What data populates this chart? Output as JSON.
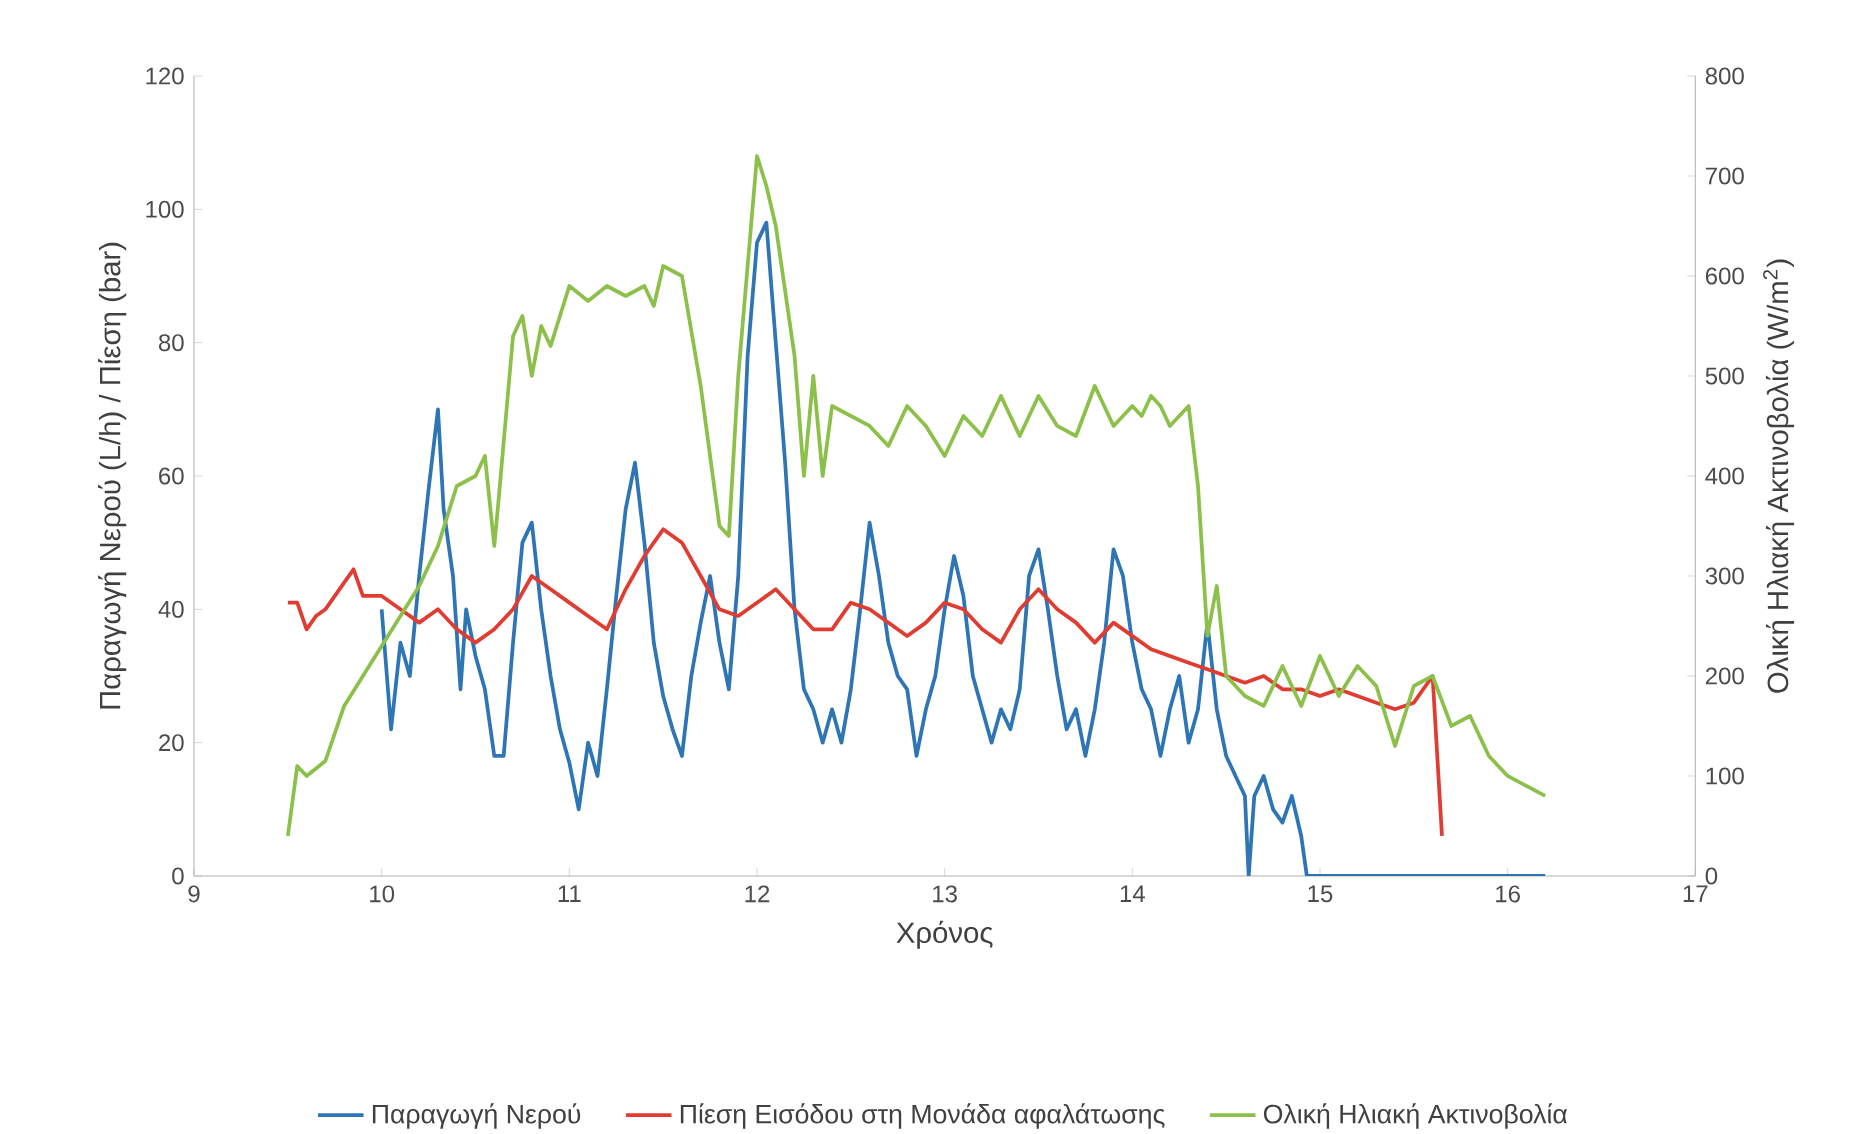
{
  "chart_data": {
    "type": "line",
    "xlabel": "Χρόνος",
    "ylabel": "Παραγωγή Νερού (L/h) / Πίεση (bar)",
    "y2label": "Ολική Ηλιακή Ακτινοβολία (W/m$^{2}$)",
    "xlim": [
      9,
      17
    ],
    "xticks": [
      9,
      10,
      11,
      12,
      13,
      14,
      15,
      16,
      17
    ],
    "ylim": [
      0,
      120
    ],
    "yticks": [
      0,
      20,
      40,
      60,
      80,
      100,
      120
    ],
    "y2lim": [
      0,
      800
    ],
    "y2ticks": [
      0,
      100,
      200,
      300,
      400,
      500,
      600,
      700,
      800
    ],
    "legend": "bottom",
    "grid": false,
    "marker": "none",
    "line_style": "solid",
    "series": [
      {
        "name": "Παραγωγή Νερού",
        "color": "#2e75b6",
        "x": [
          10.0,
          10.05,
          10.1,
          10.15,
          10.2,
          10.25,
          10.3,
          10.33,
          10.38,
          10.42,
          10.45,
          10.5,
          10.55,
          10.6,
          10.65,
          10.7,
          10.75,
          10.8,
          10.85,
          10.9,
          10.95,
          11.0,
          11.05,
          11.1,
          11.15,
          11.2,
          11.25,
          11.3,
          11.35,
          11.4,
          11.45,
          11.5,
          11.55,
          11.6,
          11.65,
          11.7,
          11.75,
          11.8,
          11.85,
          11.9,
          11.95,
          12.0,
          12.05,
          12.1,
          12.15,
          12.2,
          12.25,
          12.3,
          12.35,
          12.4,
          12.45,
          12.5,
          12.55,
          12.6,
          12.65,
          12.7,
          12.75,
          12.8,
          12.85,
          12.9,
          12.95,
          13.0,
          13.05,
          13.1,
          13.15,
          13.2,
          13.25,
          13.3,
          13.35,
          13.4,
          13.45,
          13.5,
          13.55,
          13.6,
          13.65,
          13.7,
          13.75,
          13.8,
          13.85,
          13.9,
          13.95,
          14.0,
          14.05,
          14.1,
          14.15,
          14.2,
          14.25,
          14.3,
          14.35,
          14.4,
          14.45,
          14.5,
          14.55,
          14.6,
          14.62,
          14.65,
          14.7,
          14.75,
          14.8,
          14.85,
          14.9,
          14.93,
          16.2
        ],
        "values": [
          40,
          22,
          35,
          30,
          45,
          58,
          70,
          55,
          45,
          28,
          40,
          33,
          28,
          18,
          18,
          35,
          50,
          53,
          40,
          30,
          22,
          17,
          10,
          20,
          15,
          28,
          42,
          55,
          62,
          50,
          35,
          27,
          22,
          18,
          30,
          38,
          45,
          35,
          28,
          45,
          78,
          95,
          98,
          80,
          62,
          40,
          28,
          25,
          20,
          25,
          20,
          28,
          40,
          53,
          45,
          35,
          30,
          28,
          18,
          25,
          30,
          40,
          48,
          42,
          30,
          25,
          20,
          25,
          22,
          28,
          45,
          49,
          40,
          30,
          22,
          25,
          18,
          25,
          35,
          49,
          45,
          35,
          28,
          25,
          18,
          25,
          30,
          20,
          25,
          38,
          25,
          18,
          15,
          12,
          0,
          12,
          15,
          10,
          8,
          12,
          6,
          0,
          0
        ]
      },
      {
        "name": "Πίεση Εισόδου στη Μονάδα αφαλάτωσης",
        "color": "#e03c31",
        "x": [
          9.5,
          9.55,
          9.6,
          9.65,
          9.7,
          9.8,
          9.85,
          9.9,
          10.0,
          10.1,
          10.2,
          10.3,
          10.4,
          10.5,
          10.6,
          10.7,
          10.8,
          10.9,
          11.0,
          11.1,
          11.2,
          11.3,
          11.4,
          11.5,
          11.6,
          11.7,
          11.8,
          11.9,
          12.0,
          12.1,
          12.2,
          12.3,
          12.4,
          12.5,
          12.6,
          12.7,
          12.8,
          12.9,
          13.0,
          13.1,
          13.2,
          13.3,
          13.4,
          13.5,
          13.6,
          13.7,
          13.8,
          13.9,
          14.0,
          14.1,
          14.2,
          14.3,
          14.4,
          14.5,
          14.6,
          14.7,
          14.8,
          14.9,
          15.0,
          15.1,
          15.2,
          15.3,
          15.4,
          15.5,
          15.6,
          15.65
        ],
        "values": [
          41,
          41,
          37,
          39,
          40,
          44,
          46,
          42,
          42,
          40,
          38,
          40,
          37,
          35,
          37,
          40,
          45,
          43,
          41,
          39,
          37,
          43,
          48,
          52,
          50,
          45,
          40,
          39,
          41,
          43,
          40,
          37,
          37,
          41,
          40,
          38,
          36,
          38,
          41,
          40,
          37,
          35,
          40,
          43,
          40,
          38,
          35,
          38,
          36,
          34,
          33,
          32,
          31,
          30,
          29,
          30,
          28,
          28,
          27,
          28,
          27,
          26,
          25,
          26,
          30,
          6
        ]
      },
      {
        "name": "Ολική Ηλιακή Ακτινοβολία",
        "color": "#8cc04b",
        "axis": "y2",
        "x": [
          9.5,
          9.55,
          9.6,
          9.7,
          9.8,
          9.9,
          10.0,
          10.1,
          10.2,
          10.3,
          10.4,
          10.5,
          10.55,
          10.6,
          10.62,
          10.7,
          10.75,
          10.8,
          10.85,
          10.9,
          11.0,
          11.1,
          11.2,
          11.3,
          11.4,
          11.45,
          11.5,
          11.6,
          11.7,
          11.8,
          11.85,
          11.9,
          12.0,
          12.05,
          12.1,
          12.2,
          12.25,
          12.3,
          12.35,
          12.4,
          12.5,
          12.6,
          12.7,
          12.8,
          12.9,
          13.0,
          13.1,
          13.2,
          13.3,
          13.35,
          13.4,
          13.5,
          13.6,
          13.7,
          13.8,
          13.9,
          14.0,
          14.05,
          14.1,
          14.15,
          14.2,
          14.3,
          14.35,
          14.4,
          14.45,
          14.5,
          14.6,
          14.7,
          14.8,
          14.9,
          15.0,
          15.1,
          15.2,
          15.3,
          15.4,
          15.5,
          15.6,
          15.7,
          15.8,
          15.9,
          16.0,
          16.2
        ],
        "values": [
          40,
          110,
          100,
          115,
          170,
          200,
          230,
          260,
          290,
          330,
          390,
          400,
          420,
          330,
          370,
          540,
          560,
          500,
          550,
          530,
          590,
          575,
          590,
          580,
          590,
          570,
          610,
          600,
          490,
          350,
          340,
          500,
          720,
          690,
          650,
          520,
          400,
          500,
          400,
          470,
          460,
          450,
          430,
          470,
          450,
          420,
          460,
          440,
          480,
          460,
          440,
          480,
          450,
          440,
          490,
          450,
          470,
          460,
          480,
          470,
          450,
          470,
          390,
          240,
          290,
          200,
          180,
          170,
          210,
          170,
          220,
          180,
          210,
          190,
          130,
          190,
          200,
          150,
          160,
          120,
          100,
          80
        ]
      }
    ]
  }
}
